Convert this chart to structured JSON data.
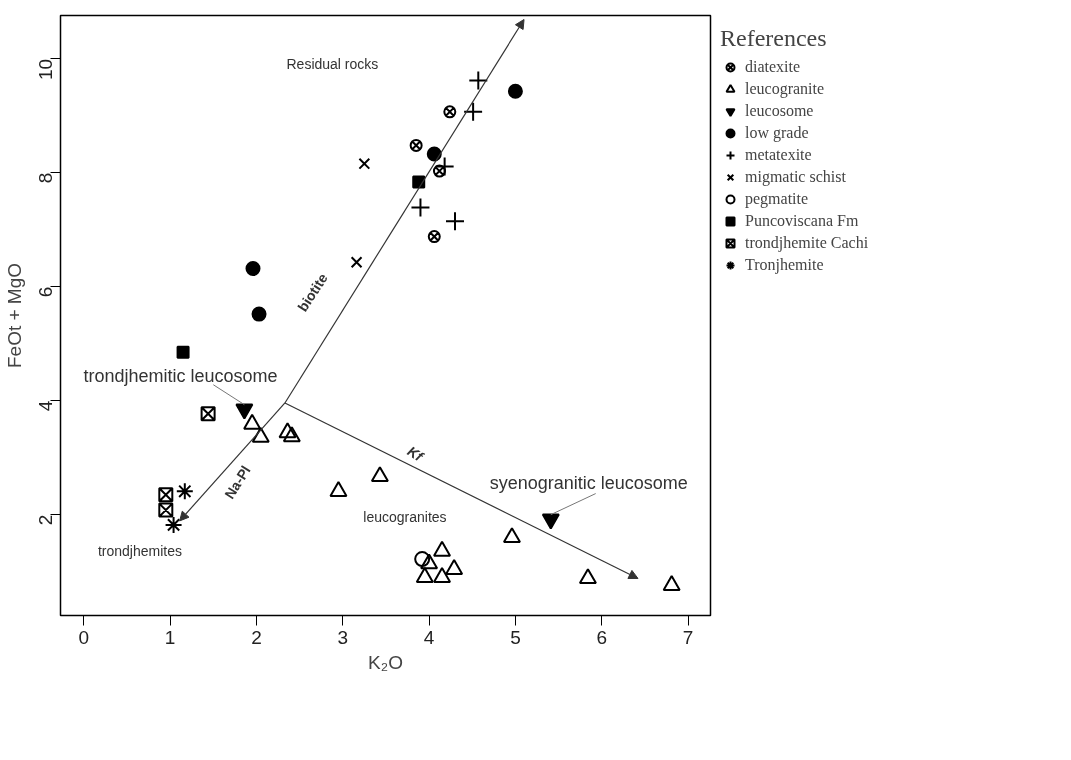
{
  "chart_data": {
    "type": "scatter",
    "xlabel": "K₂O",
    "ylabel": "FeOt + MgO",
    "legend_title": "References",
    "legend": "right",
    "grid": false,
    "xlim": [
      -0.27,
      7.26
    ],
    "ylim": [
      0.23,
      10.76
    ],
    "xticks": [
      0,
      1,
      2,
      3,
      4,
      5,
      6,
      7
    ],
    "yticks": [
      2,
      4,
      6,
      8,
      10
    ],
    "series": [
      {
        "name": "diatexite",
        "color": "#000000",
        "x": [
          4.24,
          3.85,
          4.12,
          4.06
        ],
        "values": [
          9.07,
          8.48,
          8.03,
          6.88
        ]
      },
      {
        "name": "leucogranite",
        "color": "#000000",
        "x": [
          1.95,
          2.05,
          2.36,
          2.41,
          2.95,
          3.43,
          4.15,
          4.0,
          4.29,
          3.95,
          4.15,
          4.96,
          5.84,
          6.81
        ],
        "values": [
          3.59,
          3.36,
          3.44,
          3.37,
          2.41,
          2.67,
          1.36,
          1.14,
          1.04,
          0.9,
          0.9,
          1.6,
          0.88,
          0.76
        ]
      },
      {
        "name": "leucosome",
        "color": "#000000",
        "x": [
          1.86,
          5.41
        ],
        "values": [
          3.85,
          1.92
        ]
      },
      {
        "name": "low grade",
        "color": "#000000",
        "x": [
          5.0,
          4.06,
          1.96,
          2.03
        ],
        "values": [
          9.43,
          8.33,
          6.32,
          5.52
        ]
      },
      {
        "name": "metatexite",
        "color": "#000000",
        "x": [
          4.57,
          4.51,
          4.18,
          3.9,
          4.3
        ],
        "values": [
          9.62,
          9.07,
          8.11,
          7.39,
          7.15
        ]
      },
      {
        "name": "migmatic schist",
        "color": "#000000",
        "x": [
          3.25,
          3.16
        ],
        "values": [
          8.16,
          6.43
        ]
      },
      {
        "name": "pegmatite",
        "color": "#000000",
        "x": [
          3.92
        ],
        "values": [
          1.22
        ]
      },
      {
        "name": "Puncoviscana Fm",
        "color": "#000000",
        "x": [
          3.88,
          1.15
        ],
        "values": [
          7.84,
          4.85
        ]
      },
      {
        "name": "trondjhemite Cachi",
        "color": "#000000",
        "x": [
          1.44,
          0.95,
          0.95
        ],
        "values": [
          3.77,
          2.35,
          2.08
        ]
      },
      {
        "name": "Tronjhemite",
        "color": "#000000",
        "x": [
          1.17,
          1.04
        ],
        "values": [
          2.41,
          1.82
        ]
      }
    ],
    "annotations": [
      "Residual rocks",
      {
        "text": "trondjhemitic leucosome",
        "x": 1.86,
        "y": 3.85
      },
      {
        "text": "syenogranitic leucosome",
        "x": 5.41,
        "y": 1.92
      },
      "leucogranites",
      "trondjhemites",
      "biotite",
      "Na-Pl",
      "Kf"
    ]
  }
}
